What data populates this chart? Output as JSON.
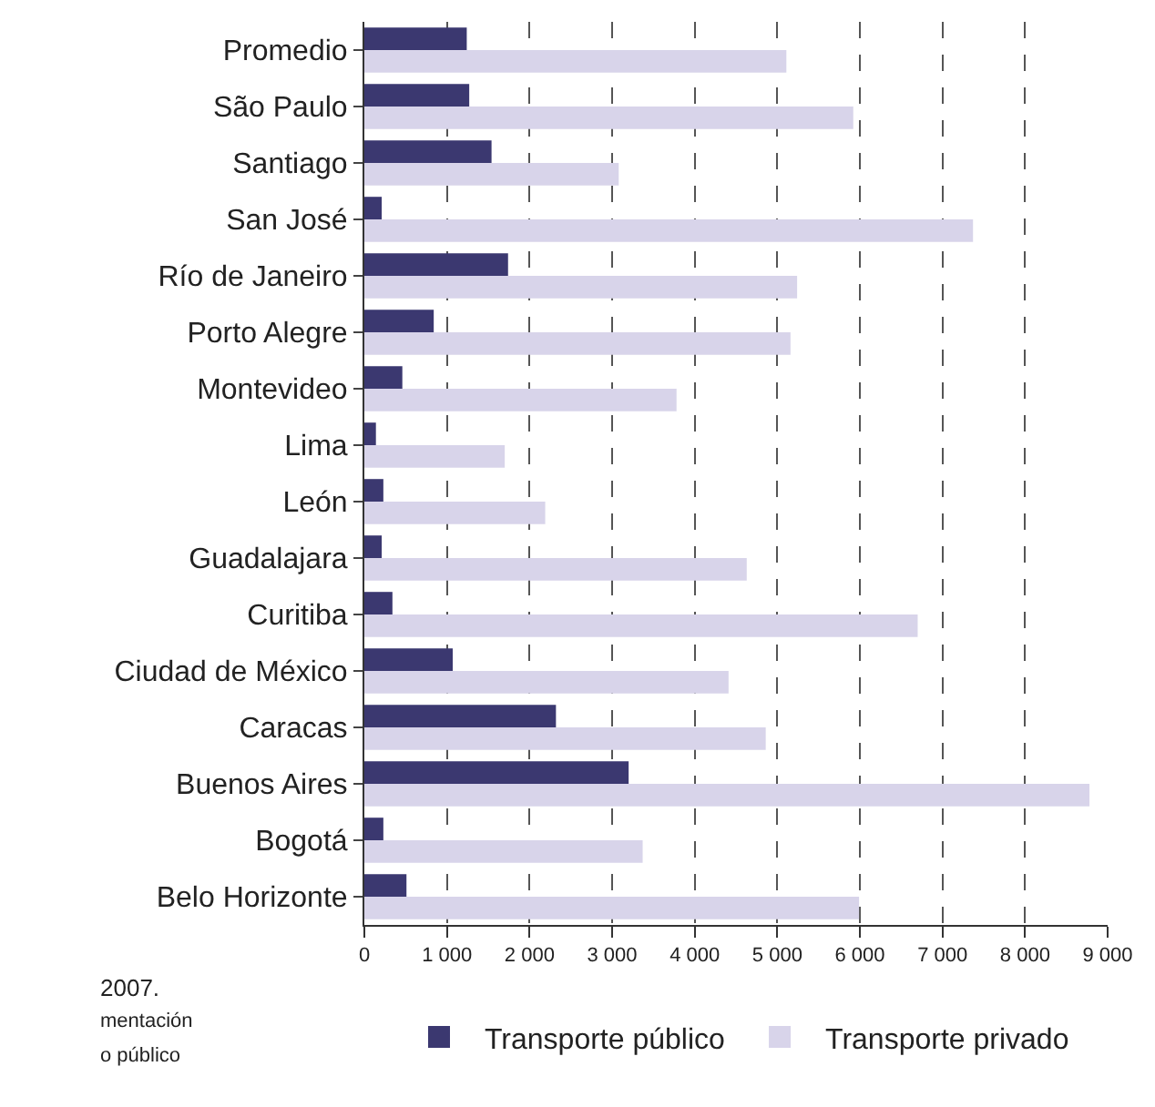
{
  "chart_data": {
    "type": "bar",
    "orientation": "horizontal",
    "categories": [
      "Promedio",
      "São Paulo",
      "Santiago",
      "San José",
      "Río de Janeiro",
      "Porto Alegre",
      "Montevideo",
      "Lima",
      "León",
      "Guadalajara",
      "Curitiba",
      "Ciudad de México",
      "Caracas",
      "Buenos Aires",
      "Bogotá",
      "Belo Horizonte"
    ],
    "series": [
      {
        "name": "Transporte público",
        "color": "#3b3870",
        "values": [
          1240,
          1270,
          1540,
          210,
          1740,
          840,
          460,
          140,
          230,
          210,
          340,
          1070,
          2320,
          3200,
          230,
          510
        ]
      },
      {
        "name": "Transporte privado",
        "color": "#d8d4ea",
        "values": [
          5110,
          5920,
          3080,
          7370,
          5240,
          5160,
          3780,
          1700,
          2190,
          4630,
          6700,
          4410,
          4860,
          8780,
          3370,
          5990
        ]
      }
    ],
    "xlim": [
      0,
      9000
    ],
    "xticks": [
      0,
      {
        "value": 1000,
        "label": "1 000"
      },
      {
        "value": 2000,
        "label": "2 000"
      },
      {
        "value": 3000,
        "label": "3 000"
      },
      {
        "value": 4000,
        "label": "4 000"
      },
      {
        "value": 5000,
        "label": "5 000"
      },
      {
        "value": 6000,
        "label": "6 000"
      },
      {
        "value": 7000,
        "label": "7 000"
      },
      {
        "value": 8000,
        "label": "8 000"
      },
      {
        "value": 9000,
        "label": "9 000"
      }
    ],
    "grid": "x",
    "legend": "bottom",
    "annotations": [
      "2007.",
      "mentación",
      "o público"
    ]
  }
}
